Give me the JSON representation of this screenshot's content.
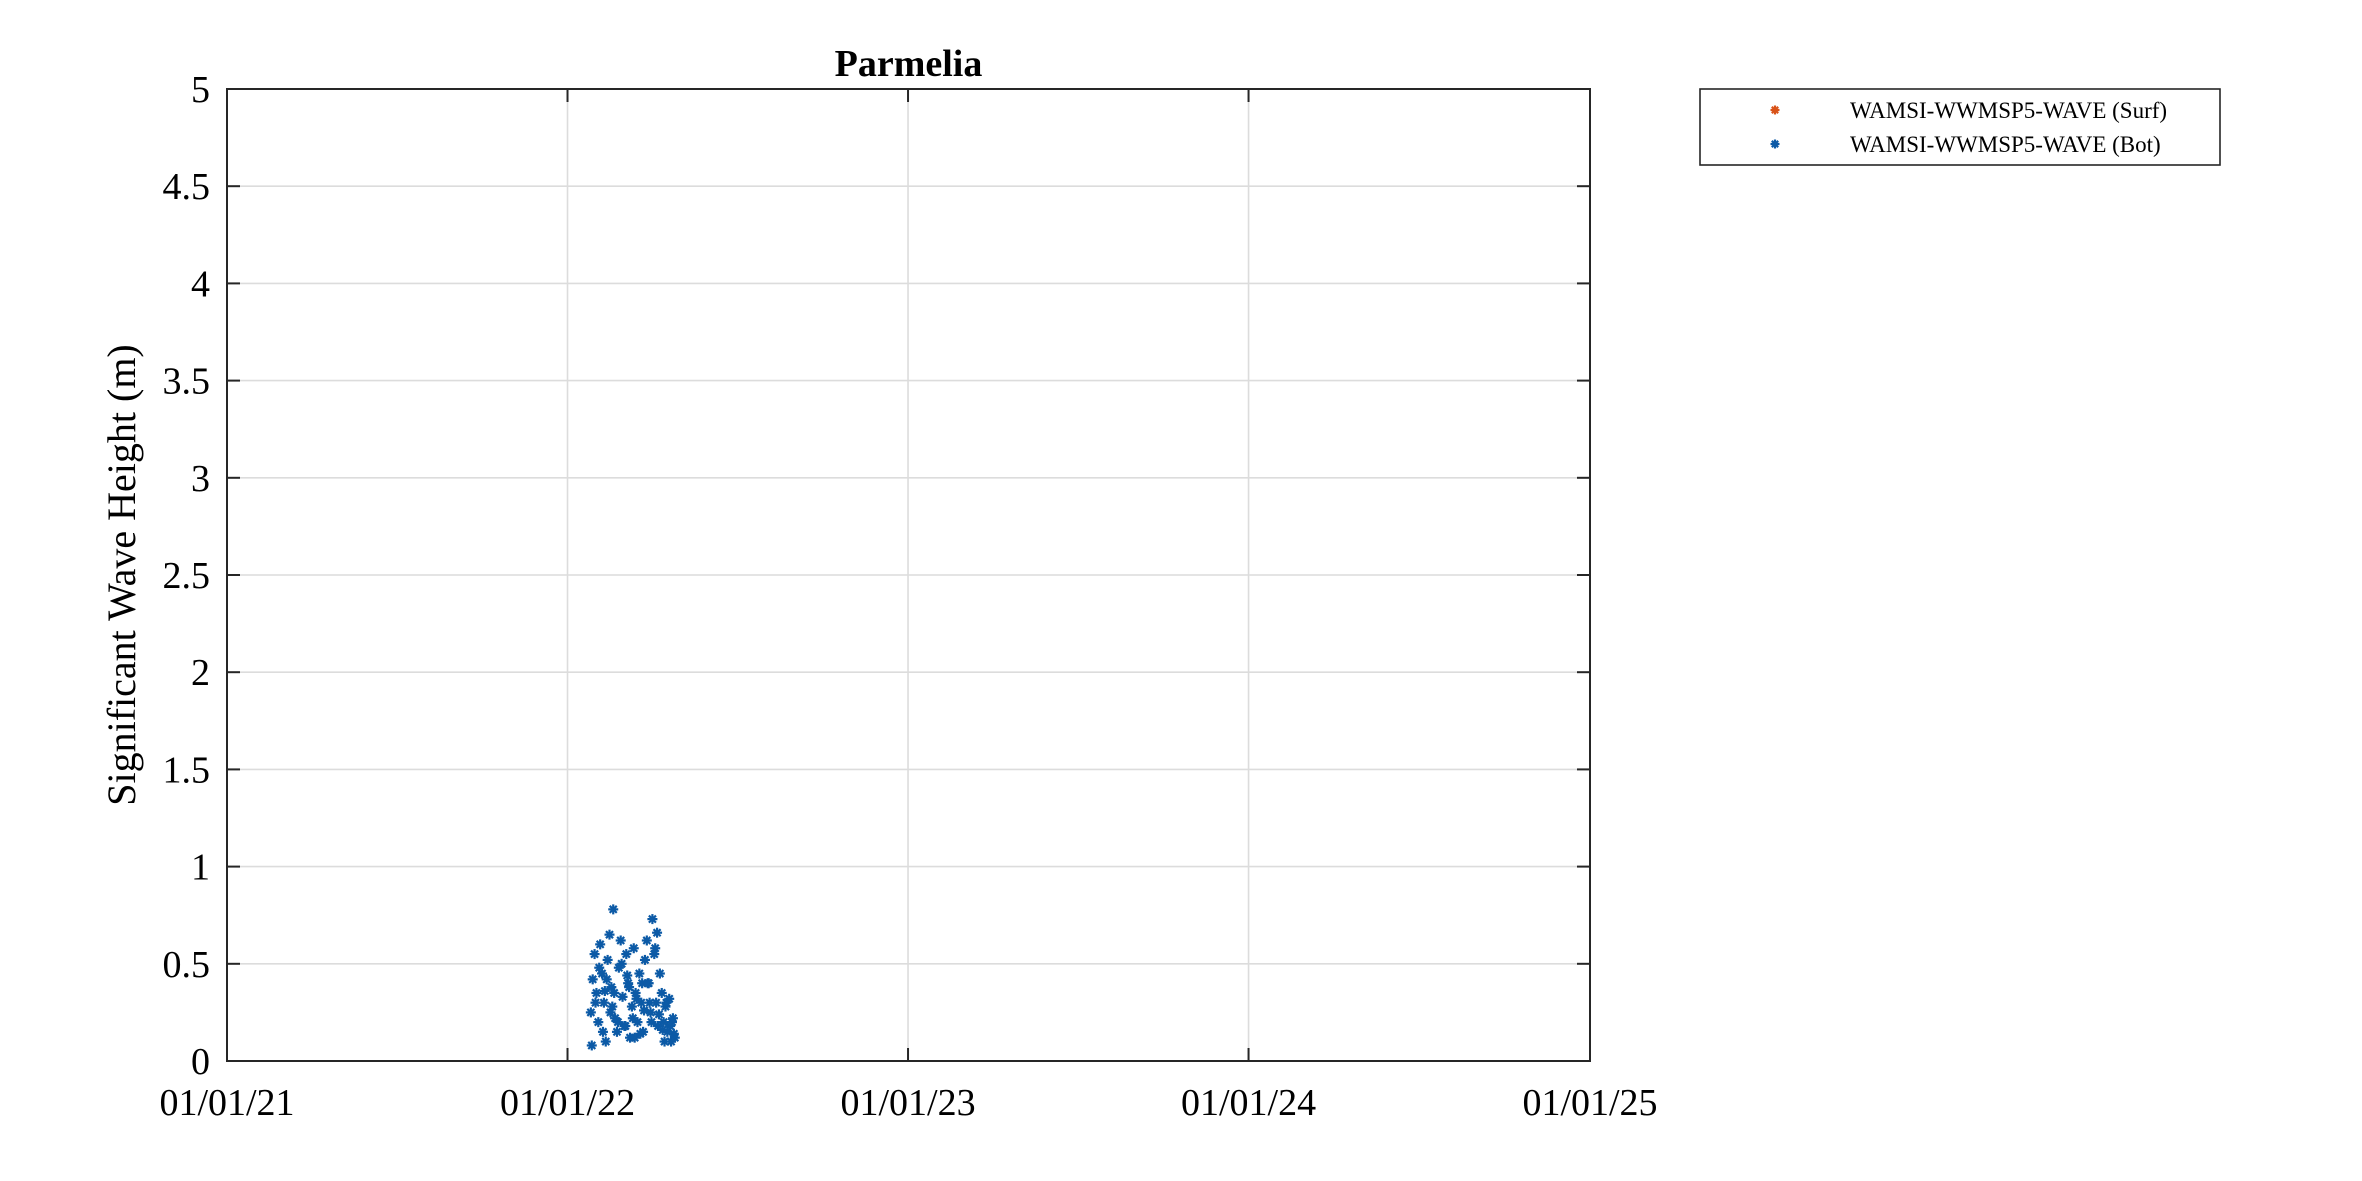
{
  "chart_data": {
    "type": "scatter",
    "title": "Parmelia",
    "xlabel": "",
    "ylabel": "Significant Wave Height (m)",
    "x_type": "date",
    "x_tick_format": "dd/mm/yy",
    "xlim": [
      "2021-01-01",
      "2025-01-01"
    ],
    "ylim": [
      0,
      5
    ],
    "xticks": [
      "2021-01-01",
      "2022-01-01",
      "2023-01-01",
      "2024-01-01",
      "2025-01-01"
    ],
    "xtick_labels": [
      "01/01/21",
      "01/01/22",
      "01/01/23",
      "01/01/24",
      "01/01/25"
    ],
    "yticks": [
      0,
      0.5,
      1,
      1.5,
      2,
      2.5,
      3,
      3.5,
      4,
      4.5,
      5
    ],
    "ytick_labels": [
      "0",
      "0.5",
      "1",
      "1.5",
      "2",
      "2.5",
      "3",
      "3.5",
      "4",
      "4.5",
      "5"
    ],
    "grid": true,
    "legend": "outside-top-right",
    "marker": "asterisk",
    "series": [
      {
        "name": "WAMSI-WWMSP5-WAVE (Surf)",
        "color": "#d95319",
        "x": [],
        "y": []
      },
      {
        "name": "WAMSI-WWMSP5-WAVE (Bot)",
        "color": "#0c5aa6",
        "x": [
          "2022-01-26",
          "2022-01-28",
          "2022-01-30",
          "2022-02-01",
          "2022-02-03",
          "2022-02-05",
          "2022-02-07",
          "2022-02-09",
          "2022-02-11",
          "2022-02-13",
          "2022-02-15",
          "2022-02-17",
          "2022-02-19",
          "2022-02-21",
          "2022-02-23",
          "2022-02-25",
          "2022-02-27",
          "2022-03-01",
          "2022-03-03",
          "2022-03-05",
          "2022-03-07",
          "2022-03-09",
          "2022-03-11",
          "2022-03-13",
          "2022-03-15",
          "2022-03-17",
          "2022-03-19",
          "2022-03-21",
          "2022-03-23",
          "2022-03-25",
          "2022-03-27",
          "2022-03-29",
          "2022-03-31",
          "2022-04-02",
          "2022-04-04",
          "2022-04-06",
          "2022-04-08",
          "2022-04-10",
          "2022-04-12",
          "2022-04-14",
          "2022-04-16",
          "2022-04-18",
          "2022-04-20",
          "2022-04-22",
          "2022-04-24",
          "2022-04-26",
          "2022-01-27",
          "2022-01-31",
          "2022-02-04",
          "2022-02-08",
          "2022-02-12",
          "2022-02-16",
          "2022-02-20",
          "2022-02-24",
          "2022-02-28",
          "2022-03-04",
          "2022-03-08",
          "2022-03-12",
          "2022-03-16",
          "2022-03-20",
          "2022-03-24",
          "2022-03-28",
          "2022-04-01",
          "2022-04-05",
          "2022-04-09",
          "2022-04-13",
          "2022-04-17",
          "2022-04-21",
          "2022-04-25",
          "2022-02-10",
          "2022-02-18",
          "2022-03-06",
          "2022-03-14",
          "2022-03-22",
          "2022-03-30",
          "2022-04-07",
          "2022-04-15",
          "2022-04-23"
        ],
        "y": [
          0.25,
          0.42,
          0.55,
          0.35,
          0.2,
          0.6,
          0.45,
          0.3,
          0.1,
          0.52,
          0.65,
          0.38,
          0.78,
          0.22,
          0.15,
          0.48,
          0.62,
          0.33,
          0.18,
          0.55,
          0.4,
          0.12,
          0.28,
          0.58,
          0.35,
          0.2,
          0.45,
          0.3,
          0.15,
          0.52,
          0.62,
          0.4,
          0.25,
          0.73,
          0.55,
          0.3,
          0.18,
          0.45,
          0.35,
          0.2,
          0.28,
          0.15,
          0.32,
          0.1,
          0.22,
          0.12,
          0.08,
          0.3,
          0.48,
          0.15,
          0.42,
          0.25,
          0.35,
          0.2,
          0.5,
          0.18,
          0.38,
          0.22,
          0.32,
          0.14,
          0.26,
          0.4,
          0.2,
          0.58,
          0.24,
          0.16,
          0.3,
          0.18,
          0.14,
          0.36,
          0.28,
          0.44,
          0.12,
          0.4,
          0.3,
          0.66,
          0.1,
          0.2
        ]
      }
    ]
  }
}
